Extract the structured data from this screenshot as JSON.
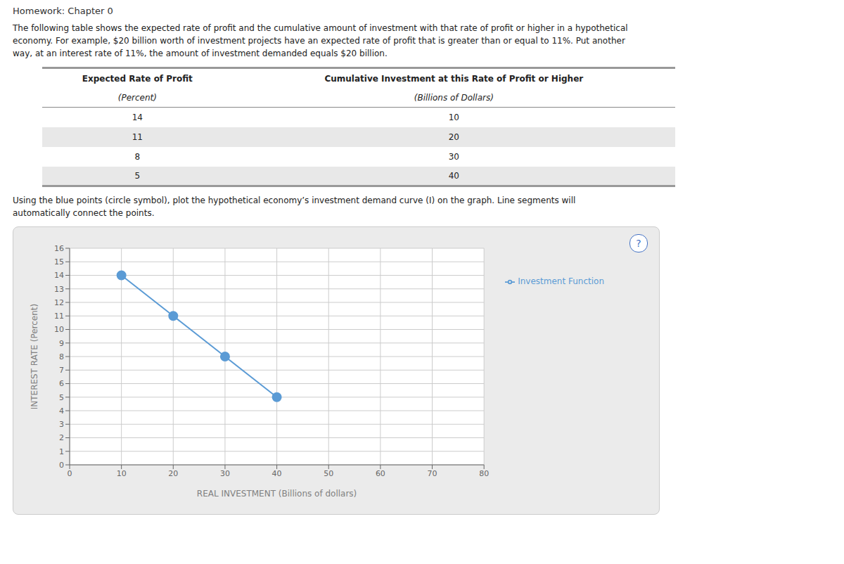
{
  "chart_data": {
    "type": "line",
    "title": "Homework: Chapter 0",
    "subtitle": [
      "The following table shows the expected rate of profit and the cumulative amount of investment with that rate of profit or higher in a hypothetical",
      "economy. For example, $20 billion worth of investment projects have an expected rate of profit that is greater than or equal to 11%. Put another",
      "way, at an interest rate of 11%, the amount of investment demanded equals $20 billion."
    ],
    "table": {
      "columns": [
        {
          "header": "Expected Rate of Profit",
          "subheader": "(Percent)"
        },
        {
          "header": "Cumulative Investment at this Rate of Profit or Higher",
          "subheader": "(Billions of Dollars)"
        }
      ],
      "rows": [
        [
          14,
          10
        ],
        [
          11,
          20
        ],
        [
          8,
          30
        ],
        [
          5,
          40
        ]
      ]
    },
    "annotations": [
      "Using the blue points (circle symbol), plot the hypothetical economy’s investment demand curve (I) on the graph. Line segments will",
      "automatically connect the points.",
      "?"
    ],
    "x": [
      10,
      20,
      30,
      40
    ],
    "series": [
      {
        "name": "Investment Function",
        "color": "#5b9bd5",
        "marker": "circle",
        "values": [
          14,
          11,
          8,
          5
        ]
      }
    ],
    "xlabel": "REAL INVESTMENT (Billions of dollars)",
    "ylabel": "INTEREST RATE (Percent)",
    "xlim": [
      0,
      80
    ],
    "ylim": [
      0,
      16
    ],
    "xticks": [
      0,
      10,
      20,
      30,
      40,
      50,
      60,
      70,
      80
    ],
    "yticks": [
      0,
      1,
      2,
      3,
      4,
      5,
      6,
      7,
      8,
      9,
      10,
      11,
      12,
      13,
      14,
      15,
      16
    ],
    "grid": true,
    "legend": "right"
  }
}
